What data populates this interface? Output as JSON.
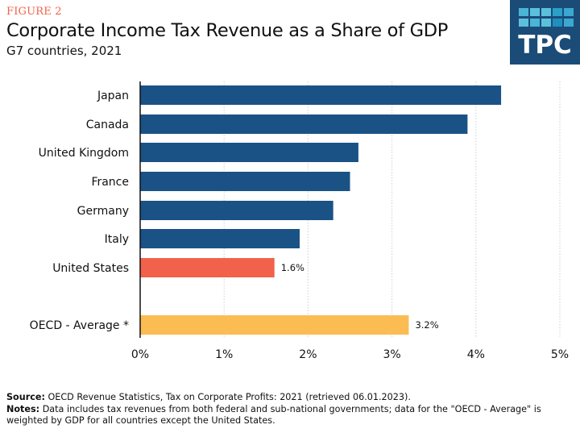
{
  "figure_label": "FIGURE 2",
  "logo": {
    "text": "TPC",
    "colors": {
      "background": "#1b4c78",
      "squares": [
        "#2a9fc9",
        "#4ab5d6",
        "#5cc0dd",
        "#3aa8cf",
        "#1f8fbf"
      ]
    }
  },
  "footer": {
    "source_label": "Source:",
    "source_text": "OECD Revenue Statistics, Tax on Corporate Profits: 2021 (retrieved 06.01.2023).",
    "notes_label": "Notes:",
    "notes_text": "Data includes tax revenues from both federal and sub-national governments; data for the \"OECD - Average\" is weighted by GDP for all countries except the United States."
  },
  "chart_data": {
    "type": "bar",
    "orientation": "horizontal",
    "title": "Corporate Income Tax Revenue as a Share of GDP",
    "subtitle": "G7 countries, 2021",
    "xlabel": "",
    "ylabel": "",
    "categories": [
      "Japan",
      "Canada",
      "United Kingdom",
      "France",
      "Germany",
      "Italy",
      "United States",
      "OECD - Average *"
    ],
    "values": [
      4.3,
      3.9,
      2.6,
      2.5,
      2.3,
      1.9,
      1.6,
      3.2
    ],
    "colors": [
      "#1a5286",
      "#1a5286",
      "#1a5286",
      "#1a5286",
      "#1a5286",
      "#1a5286",
      "#f2624a",
      "#fbbc53"
    ],
    "data_labels": [
      null,
      null,
      null,
      null,
      null,
      null,
      "1.6%",
      "3.2%"
    ],
    "gap_before_index": 7,
    "xlim": [
      0,
      5
    ],
    "xticks": [
      0,
      1,
      2,
      3,
      4,
      5
    ],
    "xtick_labels": [
      "0%",
      "1%",
      "2%",
      "3%",
      "4%",
      "5%"
    ],
    "grid": "vertical dotted",
    "legend": "none"
  }
}
